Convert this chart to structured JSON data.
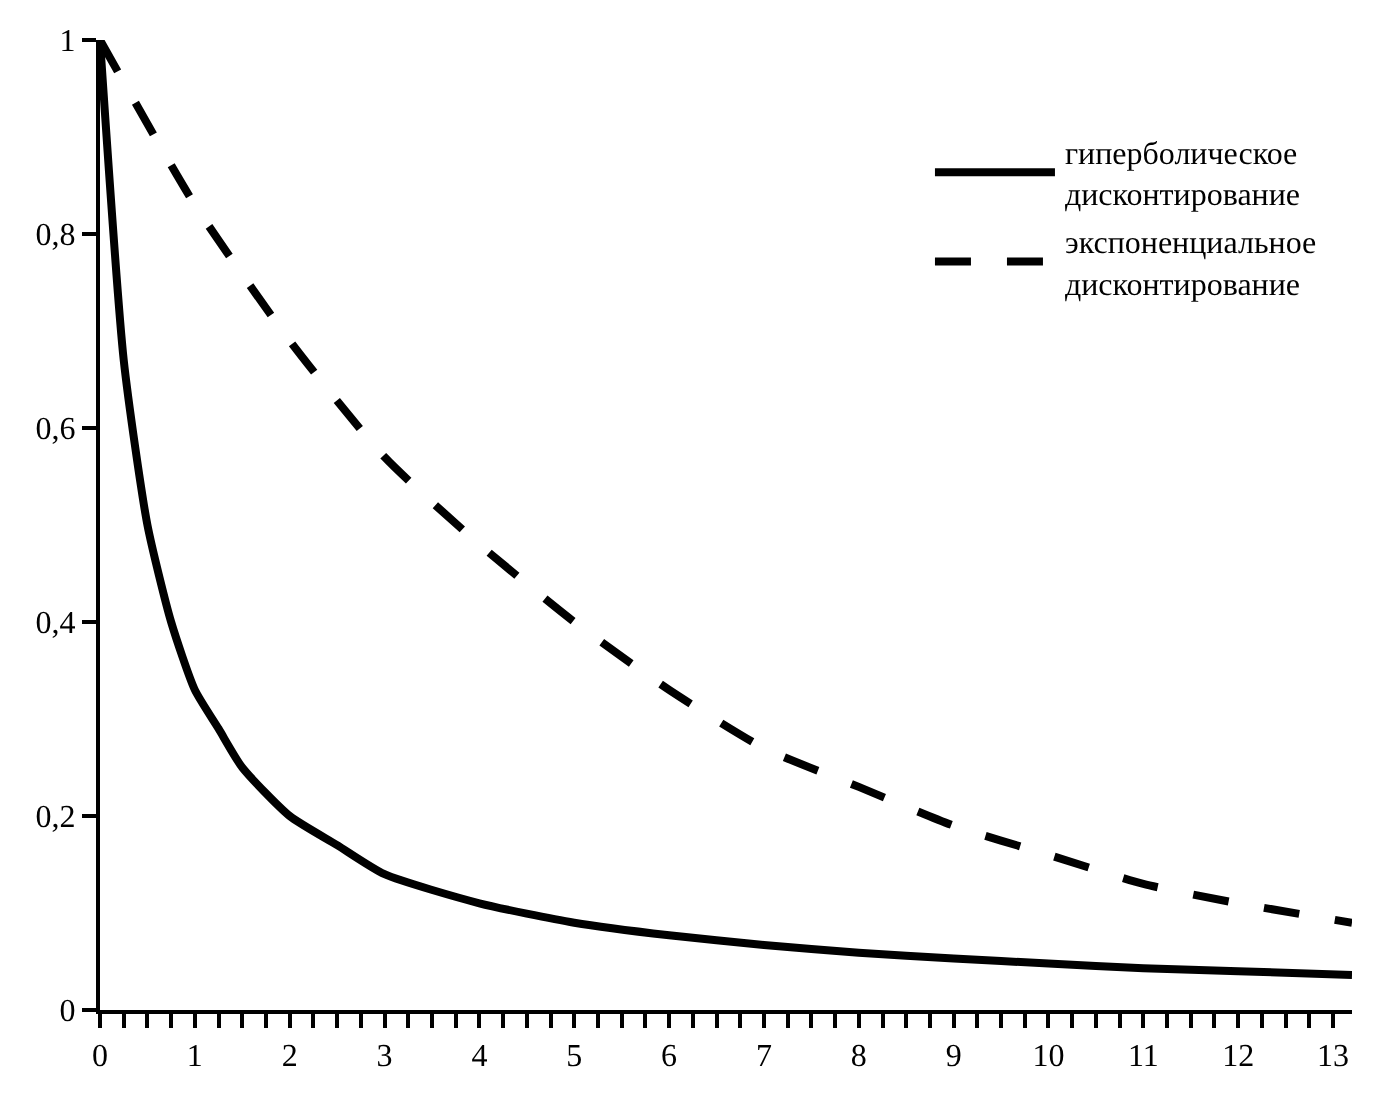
{
  "chart_data": {
    "type": "line",
    "x": [
      0,
      0.25,
      0.5,
      0.75,
      1,
      1.25,
      1.5,
      2,
      2.5,
      3,
      4,
      5,
      6,
      7,
      8,
      9,
      10,
      11,
      12,
      13.2
    ],
    "series": [
      {
        "name": "гиперболическое дисконтирование",
        "color": "#000000",
        "line_style": "solid",
        "values": [
          1,
          0.67,
          0.5,
          0.4,
          0.33,
          0.29,
          0.25,
          0.2,
          0.17,
          0.14,
          0.11,
          0.09,
          0.077,
          0.067,
          0.059,
          0.053,
          0.048,
          0.043,
          0.04,
          0.036
        ]
      },
      {
        "name": "экспоненциальное дисконтирование",
        "color": "#000000",
        "line_style": "dashed",
        "x": [
          0,
          1,
          2,
          3,
          4,
          5,
          6,
          7,
          8,
          9,
          10,
          11,
          12,
          13.2
        ],
        "values": [
          1,
          0.83,
          0.69,
          0.57,
          0.48,
          0.4,
          0.33,
          0.27,
          0.23,
          0.19,
          0.16,
          0.13,
          0.11,
          0.09
        ]
      }
    ],
    "xlim": [
      0,
      13.2
    ],
    "xticks": [
      0,
      {
        "value": 0.25,
        "label": null
      },
      {
        "value": 0.5,
        "label": null
      },
      {
        "value": 0.75,
        "label": null
      },
      1,
      {
        "value": 1.25,
        "label": null
      },
      {
        "value": 1.5,
        "label": null
      },
      {
        "value": 1.75,
        "label": null
      },
      2,
      {
        "value": 2.25,
        "label": null
      },
      {
        "value": 2.5,
        "label": null
      },
      {
        "value": 2.75,
        "label": null
      },
      3,
      {
        "value": 3.25,
        "label": null
      },
      {
        "value": 3.5,
        "label": null
      },
      {
        "value": 3.75,
        "label": null
      },
      4,
      {
        "value": 4.25,
        "label": null
      },
      {
        "value": 4.5,
        "label": null
      },
      {
        "value": 4.75,
        "label": null
      },
      5,
      {
        "value": 5.25,
        "label": null
      },
      {
        "value": 5.5,
        "label": null
      },
      {
        "value": 5.75,
        "label": null
      },
      6,
      {
        "value": 6.25,
        "label": null
      },
      {
        "value": 6.5,
        "label": null
      },
      {
        "value": 6.75,
        "label": null
      },
      7,
      {
        "value": 7.25,
        "label": null
      },
      {
        "value": 7.5,
        "label": null
      },
      {
        "value": 7.75,
        "label": null
      },
      8,
      {
        "value": 8.25,
        "label": null
      },
      {
        "value": 8.5,
        "label": null
      },
      {
        "value": 8.75,
        "label": null
      },
      9,
      {
        "value": 9.25,
        "label": null
      },
      {
        "value": 9.5,
        "label": null
      },
      {
        "value": 9.75,
        "label": null
      },
      10,
      {
        "value": 10.25,
        "label": null
      },
      {
        "value": 10.5,
        "label": null
      },
      {
        "value": 10.75,
        "label": null
      },
      11,
      {
        "value": 11.25,
        "label": null
      },
      {
        "value": 11.5,
        "label": null
      },
      {
        "value": 11.75,
        "label": null
      },
      12,
      {
        "value": 12.25,
        "label": null
      },
      {
        "value": 12.5,
        "label": null
      },
      {
        "value": 12.75,
        "label": null
      },
      13
    ],
    "ylim": [
      0,
      1
    ],
    "yticks": [
      0,
      {
        "value": 0.2,
        "label": "0,2"
      },
      {
        "value": 0.4,
        "label": "0,4"
      },
      {
        "value": 0.6,
        "label": "0,6"
      },
      {
        "value": 0.8,
        "label": "0,8"
      },
      1
    ],
    "legend": "top right",
    "marker": "none"
  }
}
